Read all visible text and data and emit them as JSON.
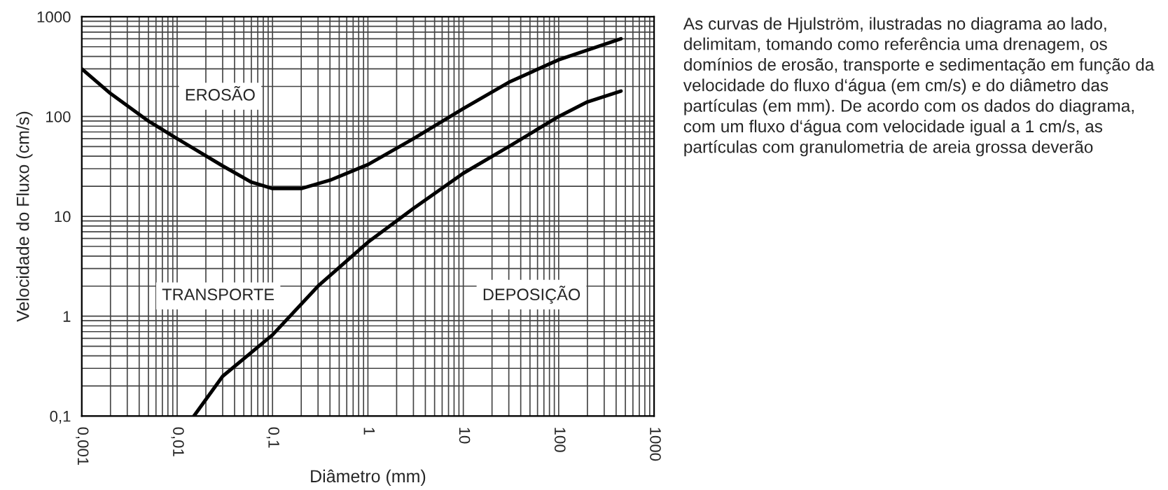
{
  "chart_data": {
    "type": "line",
    "xlabel": "Diâmetro (mm)",
    "ylabel": "Velocidade do Fluxo (cm/s)",
    "log": "xy",
    "grid": true,
    "marker": "none",
    "line_style": "solid",
    "xlim": [
      0.001,
      1000
    ],
    "ylim": [
      0.1,
      1000
    ],
    "xticks": [
      {
        "value": 0.001,
        "label": "0,001"
      },
      {
        "value": 0.01,
        "label": "0,01"
      },
      {
        "value": 0.1,
        "label": "0,1"
      },
      1,
      10,
      100,
      1000
    ],
    "yticks": [
      {
        "value": 0.1,
        "label": "0,1"
      },
      1,
      10,
      100,
      1000
    ],
    "series": [
      {
        "color": "#000000",
        "x": [
          0.001,
          0.002,
          0.005,
          0.01,
          0.03,
          0.06,
          0.1,
          0.2,
          0.4,
          1,
          3,
          10,
          30,
          100,
          450
        ],
        "values": [
          300,
          170,
          90,
          60,
          32,
          22,
          19,
          19,
          23,
          33,
          60,
          120,
          220,
          370,
          600
        ]
      },
      {
        "color": "#000000",
        "x": [
          0.015,
          0.03,
          0.1,
          0.3,
          1,
          3,
          10,
          30,
          100,
          200,
          450
        ],
        "values": [
          0.1,
          0.25,
          0.65,
          2,
          5.5,
          12,
          27,
          50,
          100,
          140,
          180
        ]
      }
    ],
    "annotations": [
      "EROSÃO",
      "TRANSPORTE",
      "DEPOSIÇÃO",
      "As curvas de Hjulström, ilustradas no diagrama ao lado, delimitam, tomando como referência uma drenagem, os domínios de erosão, transporte e sedimentação em função da velocidade do fluxo d‘água (em cm/s) e do diâmetro das partículas (em mm). De acordo com os dados do diagrama, com um fluxo d‘água com velocidade igual a 1 cm/s, as partículas com granulometria de areia grossa deverão"
    ]
  }
}
